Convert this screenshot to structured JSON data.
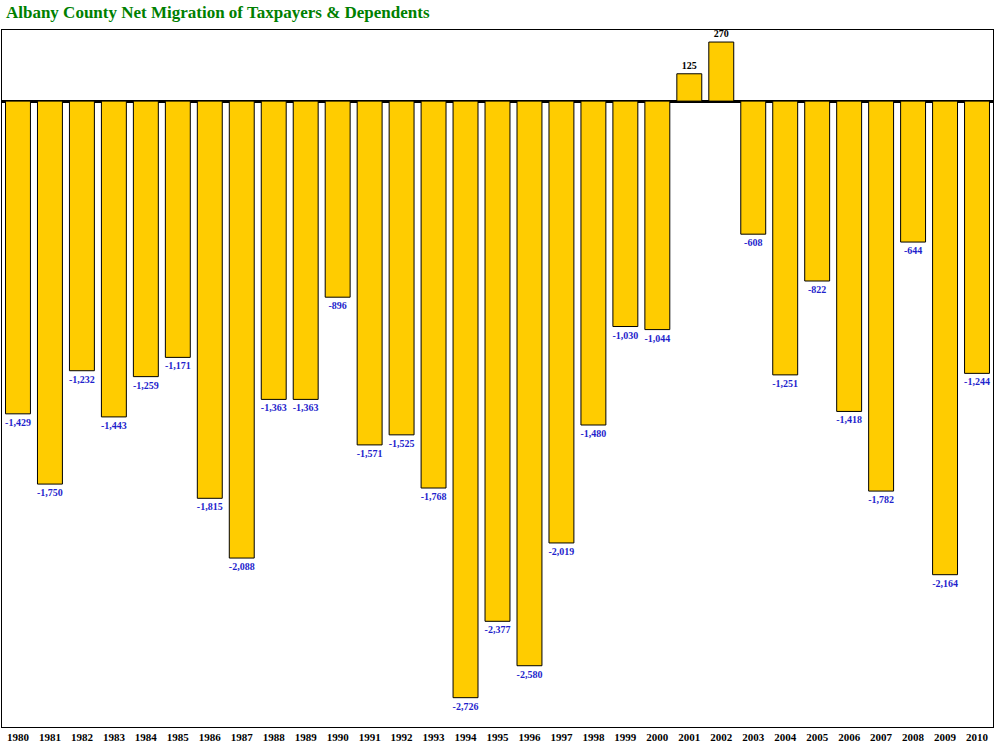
{
  "chart_data": {
    "type": "bar",
    "title": "Albany County Net Migration of Taxpayers & Dependents",
    "categories": [
      "1980",
      "1981",
      "1982",
      "1983",
      "1984",
      "1985",
      "1986",
      "1987",
      "1988",
      "1989",
      "1990",
      "1991",
      "1992",
      "1993",
      "1994",
      "1995",
      "1996",
      "1997",
      "1998",
      "1999",
      "2000",
      "2001",
      "2002",
      "2003",
      "2004",
      "2005",
      "2006",
      "2007",
      "2008",
      "2009",
      "2010"
    ],
    "values": [
      -1429,
      -1750,
      -1232,
      -1443,
      -1259,
      -1171,
      -1815,
      -2088,
      -1363,
      -1363,
      -896,
      -1571,
      -1525,
      -1768,
      -2726,
      -2377,
      -2580,
      -2019,
      -1480,
      -1030,
      -1044,
      125,
      270,
      -608,
      -1251,
      -822,
      -1418,
      -1782,
      -644,
      -2164,
      -1244
    ],
    "value_labels": [
      "-1,429",
      "-1,750",
      "-1,232",
      "-1,443",
      "-1,259",
      "-1,171",
      "-1,815",
      "-2,088",
      "-1,363",
      "-1,363",
      "-896",
      "-1,571",
      "-1,525",
      "-1,768",
      "-2,726",
      "-2,377",
      "-2,580",
      "-2,019",
      "-1,480",
      "-1,030",
      "-1,044",
      "125",
      "270",
      "-608",
      "-1,251",
      "-822",
      "-1,418",
      "-1,782",
      "-644",
      "-2,164",
      "-1,244"
    ],
    "color": "#ffcc00",
    "ylim": [
      -2860,
      325
    ],
    "yticks": [],
    "grid": false,
    "data_labels": true,
    "tick_labels": "x"
  }
}
